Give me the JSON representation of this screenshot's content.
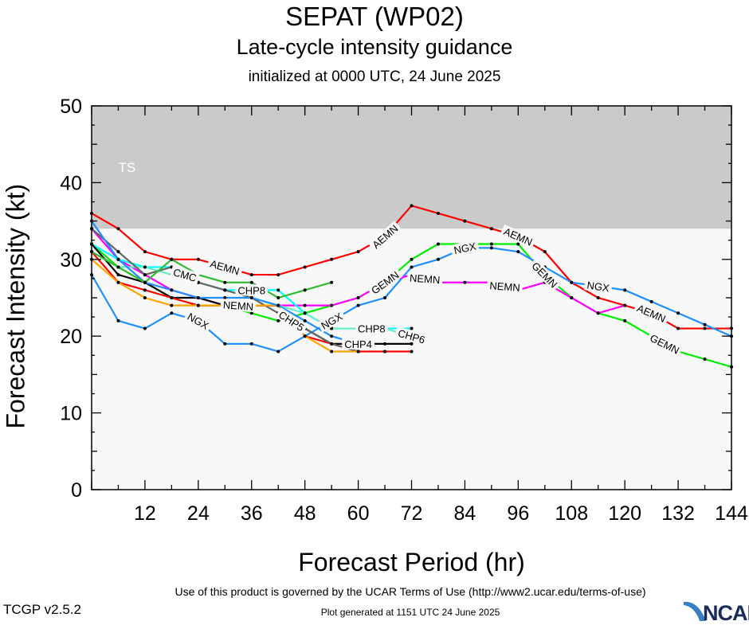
{
  "chart_data": {
    "type": "line",
    "title": "SEPAT (WP02)",
    "subtitle": "Late-cycle intensity guidance",
    "initialized": "initialized at 0000 UTC, 24 June 2025",
    "xlabel": "Forecast Period (hr)",
    "ylabel": "Forecast Intensity (kt)",
    "xlim": [
      0,
      144
    ],
    "ylim": [
      0,
      50
    ],
    "xticks": [
      12,
      24,
      36,
      48,
      60,
      72,
      84,
      96,
      108,
      120,
      132,
      144
    ],
    "yticks": [
      0,
      10,
      20,
      30,
      40,
      50
    ],
    "grid": false,
    "bands": [
      {
        "label": "TS",
        "from": 34,
        "to": 50,
        "color": "#cacaca"
      }
    ],
    "background": "#f8f8f8",
    "series": [
      {
        "name": "AEMN",
        "color": "#ff0000",
        "labels_at": [
          30,
          66,
          96,
          126
        ],
        "x": [
          0,
          6,
          12,
          18,
          24,
          30,
          36,
          42,
          48,
          54,
          60,
          66,
          72,
          78,
          84,
          90,
          96,
          102,
          108,
          114,
          120,
          126,
          132,
          138,
          144
        ],
        "y": [
          36,
          34,
          31,
          30,
          30,
          29,
          28,
          28,
          29,
          30,
          31,
          33,
          37,
          36,
          35,
          34,
          33,
          31,
          27,
          25,
          24,
          23,
          21,
          21,
          21
        ]
      },
      {
        "name": "GEMN",
        "color": "#00ee00",
        "labels_at": [
          66,
          96,
          126
        ],
        "x": [
          0,
          6,
          12,
          18,
          24,
          30,
          36,
          42,
          48,
          54,
          60,
          66,
          72,
          78,
          84,
          90,
          96,
          102,
          108,
          114,
          120,
          126,
          132,
          138,
          144
        ],
        "y": [
          32,
          29,
          27,
          25,
          24,
          24,
          23,
          22,
          23,
          24,
          25,
          27,
          30,
          32,
          32,
          32,
          32,
          28,
          25,
          23,
          22,
          20,
          18,
          17,
          16
        ]
      },
      {
        "name": "NGX",
        "color": "#1e90ff",
        "labels_at": [
          24,
          54,
          84,
          114
        ],
        "x": [
          0,
          6,
          12,
          18,
          24,
          30,
          36,
          42,
          48,
          54,
          60,
          66,
          72,
          78,
          84,
          90,
          96,
          102,
          108,
          114,
          120,
          126,
          132,
          138,
          144
        ],
        "y": [
          28,
          22,
          21,
          23,
          22,
          19,
          19,
          18,
          20,
          22,
          24,
          25,
          29,
          30,
          31.5,
          31.5,
          31,
          29,
          27,
          26.5,
          26,
          24.5,
          23,
          21.5,
          20
        ]
      },
      {
        "name": "NEMN",
        "color": "#ff00ff",
        "labels_at": [
          30,
          66,
          96
        ],
        "x": [
          0,
          6,
          12,
          18,
          24,
          30,
          36,
          42,
          48,
          54,
          60,
          66,
          72,
          78,
          84,
          90,
          96,
          102,
          108,
          114,
          120
        ],
        "y": [
          34,
          30,
          28,
          26,
          25,
          24,
          24,
          24,
          24,
          24,
          25,
          27,
          28,
          27,
          27,
          27,
          26,
          27,
          25,
          23,
          24
        ]
      },
      {
        "name": "CHP8",
        "color": "#00ffff",
        "labels_at": [
          30,
          60
        ],
        "x": [
          0,
          6,
          12,
          18,
          24,
          30,
          36,
          42,
          48,
          54,
          60,
          66,
          72
        ],
        "y": [
          32,
          30,
          29,
          29,
          27,
          26,
          26,
          26,
          23,
          21,
          21,
          21,
          21
        ]
      },
      {
        "name": "CHP6",
        "color": "#66eec6",
        "labels_at": [
          66
        ],
        "x": [
          0,
          6,
          12,
          18,
          24,
          30,
          36,
          42,
          48,
          54,
          60,
          66,
          72
        ],
        "y": [
          31,
          29,
          29,
          28,
          27,
          26,
          25,
          24,
          23,
          21,
          21,
          21,
          20
        ]
      },
      {
        "name": "CHP4",
        "color": "#000000",
        "labels_at": [
          60
        ],
        "x": [
          0,
          6,
          12,
          18,
          24,
          30,
          36,
          42,
          48,
          54,
          60,
          66,
          72
        ],
        "y": [
          32,
          28,
          27,
          25,
          25,
          24,
          24,
          24,
          21,
          19,
          19,
          19,
          19
        ]
      },
      {
        "name": "CHP5",
        "color": "#ff0000",
        "labels_at": [
          60
        ],
        "x": [
          0,
          6,
          12,
          18,
          24,
          30,
          36,
          42,
          48,
          54,
          60,
          66,
          72
        ],
        "y": [
          31,
          27,
          26,
          25,
          24,
          24,
          24,
          24,
          20,
          19,
          18,
          18,
          18
        ]
      },
      {
        "name": "CMC",
        "color": "#666666",
        "labels_at": [
          24
        ],
        "x": [
          0,
          6,
          12,
          18,
          24,
          30,
          36,
          42,
          48,
          54,
          60
        ],
        "y": [
          34,
          31,
          28,
          29,
          27,
          26,
          25,
          23,
          21,
          19,
          18
        ]
      },
      {
        "name": "",
        "color": "#ffa500",
        "labels_at": [],
        "x": [
          0,
          6,
          12,
          18,
          24,
          30,
          36,
          42,
          48,
          54,
          60
        ],
        "y": [
          30,
          27,
          25,
          24,
          24,
          24,
          24,
          24,
          20,
          18,
          18
        ]
      },
      {
        "name": "",
        "color": "#1e90ff",
        "labels_at": [],
        "x": [
          0,
          6,
          12,
          18,
          24,
          30,
          36,
          42,
          48,
          54,
          60
        ],
        "y": [
          35,
          30,
          27,
          26,
          25,
          25,
          25,
          24,
          22,
          20,
          19
        ]
      },
      {
        "name": "",
        "color": "#33bb33",
        "labels_at": [],
        "x": [
          0,
          6,
          12,
          18,
          24,
          30,
          36,
          42,
          48,
          54
        ],
        "y": [
          31,
          29,
          27,
          30,
          28,
          27,
          27,
          25,
          26,
          27
        ]
      }
    ]
  },
  "footer": {
    "terms": "Use of this product is governed by the UCAR Terms of Use (http://www2.ucar.edu/terms-of-use)",
    "version": "TCGP v2.5.2",
    "generated": "Plot generated at 1151 UTC   24 June 2025",
    "logo_text": "NCAR"
  }
}
